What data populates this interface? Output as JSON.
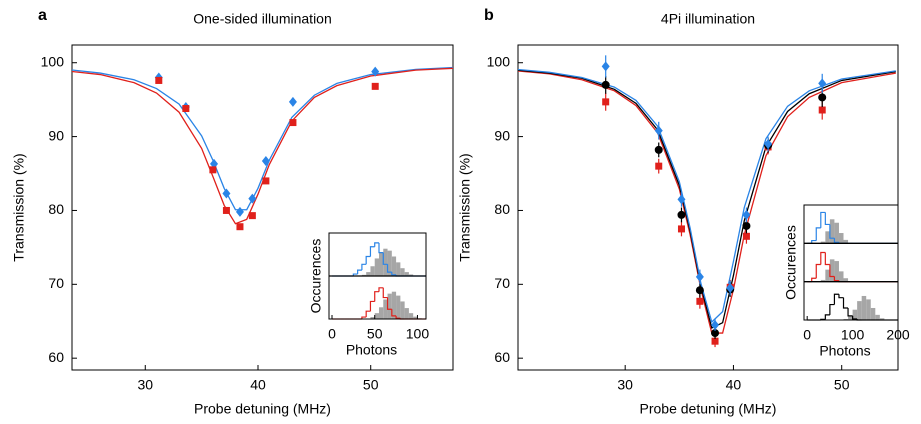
{
  "chart_data": [
    {
      "type": "scatter",
      "label": "a",
      "title": "One-sided illumination",
      "xlabel": "Probe detuning (MHz)",
      "ylabel": "Transmission (%)",
      "xlim": [
        23.5,
        57.3
      ],
      "ylim": [
        58.4,
        102.4
      ],
      "xticks": [
        30,
        40,
        50
      ],
      "yticks": [
        60,
        70,
        80,
        90,
        100
      ],
      "series": [
        {
          "color": "#2a84e6",
          "marker": "diamond",
          "x": [
            31.2,
            33.6,
            36.1,
            37.2,
            38.4,
            39.5,
            40.7,
            43.1,
            50.4
          ],
          "values": [
            98.0,
            94.0,
            86.3,
            82.3,
            79.8,
            81.6,
            86.7,
            94.7,
            98.8
          ]
        },
        {
          "color": "#e0201b",
          "marker": "square",
          "x": [
            31.2,
            33.6,
            36.0,
            37.2,
            38.4,
            39.5,
            40.7,
            43.1,
            50.4
          ],
          "values": [
            97.6,
            93.8,
            85.5,
            80.0,
            77.8,
            79.3,
            84.0,
            91.9,
            96.8
          ]
        }
      ],
      "fits": [
        {
          "color": "#2a84e6",
          "x": [
            23,
            26,
            29,
            31,
            33,
            35,
            36,
            37,
            38,
            39,
            40,
            41,
            43,
            45,
            47,
            50,
            54,
            58
          ],
          "values": [
            99.1,
            98.6,
            97.7,
            96.5,
            94.4,
            90.1,
            86.8,
            83.0,
            80.1,
            80.1,
            83.0,
            86.8,
            92.6,
            95.6,
            97.2,
            98.4,
            99.1,
            99.4
          ]
        },
        {
          "color": "#e0201b",
          "x": [
            23,
            26,
            29,
            31,
            33,
            35,
            36,
            37,
            38,
            39,
            40,
            41,
            43,
            45,
            47,
            50,
            54,
            58
          ],
          "values": [
            98.9,
            98.4,
            97.3,
            95.9,
            93.3,
            88.4,
            84.6,
            80.7,
            78.2,
            78.8,
            82.2,
            86.2,
            92.1,
            95.3,
            96.9,
            98.2,
            99.0,
            99.3
          ]
        }
      ]
    },
    {
      "type": "histogram",
      "xlabel": "Photons",
      "ylabel": "Occurences",
      "xlim": [
        -3.5,
        110
      ],
      "xticks": [
        0,
        50,
        100
      ],
      "ylim": [
        0,
        100
      ],
      "bins": [
        0,
        5,
        10,
        15,
        20,
        25,
        30,
        35,
        40,
        45,
        50,
        55,
        60,
        65,
        70,
        75,
        80,
        85,
        90,
        95,
        100,
        105,
        110
      ],
      "rows": [
        {
          "series": [
            {
              "color": "#a6a6a6",
              "style": "filled",
              "values": [
                0,
                0,
                0,
                0,
                0,
                0,
                0,
                3,
                10,
                25,
                45,
                60,
                70,
                65,
                50,
                35,
                20,
                10,
                4,
                1,
                0,
                0
              ]
            },
            {
              "color": "#2a84e6",
              "style": "step",
              "values": [
                0,
                0,
                0,
                0,
                0,
                5,
                15,
                30,
                50,
                75,
                85,
                60,
                30,
                10,
                3,
                0,
                0,
                0,
                0,
                0,
                0,
                0
              ]
            }
          ]
        },
        {
          "series": [
            {
              "color": "#a6a6a6",
              "style": "filled",
              "values": [
                0,
                0,
                0,
                0,
                0,
                0,
                0,
                0,
                0,
                5,
                15,
                30,
                50,
                65,
                70,
                60,
                45,
                28,
                15,
                6,
                2,
                0
              ]
            },
            {
              "color": "#e0201b",
              "style": "step",
              "values": [
                0,
                0,
                0,
                0,
                0,
                0,
                0,
                5,
                20,
                45,
                70,
                80,
                55,
                25,
                8,
                2,
                0,
                0,
                0,
                0,
                0,
                0
              ]
            }
          ]
        }
      ]
    },
    {
      "type": "scatter",
      "label": "b",
      "title": "4Pi illumination",
      "xlabel": "Probe detuning (MHz)",
      "ylabel": "Transmission (%)",
      "xlim": [
        20.1,
        55.2
      ],
      "ylim": [
        58.4,
        102.4
      ],
      "xticks": [
        30,
        40,
        50
      ],
      "yticks": [
        60,
        70,
        80,
        90,
        100
      ],
      "series": [
        {
          "color": "#e0201b",
          "marker": "square",
          "x": [
            28.2,
            33.1,
            35.2,
            36.9,
            38.3,
            39.7,
            41.2,
            43.2,
            48.2
          ],
          "values": [
            94.7,
            86.0,
            77.5,
            67.7,
            62.3,
            69.6,
            76.5,
            88.6,
            93.6
          ],
          "errors": [
            1.2,
            1.0,
            1.0,
            1.0,
            0.8,
            1.0,
            1.0,
            1.0,
            1.3
          ]
        },
        {
          "color": "#000000",
          "marker": "circle",
          "x": [
            28.2,
            33.1,
            35.2,
            36.9,
            38.3,
            39.7,
            41.2,
            43.2,
            48.2
          ],
          "values": [
            97.0,
            88.2,
            79.4,
            69.2,
            63.4,
            69.3,
            77.9,
            88.8,
            95.3
          ],
          "errors": [
            1.2,
            1.0,
            1.0,
            1.0,
            0.8,
            1.0,
            1.0,
            1.0,
            1.3
          ]
        },
        {
          "color": "#2a84e6",
          "marker": "diamond",
          "x": [
            28.2,
            33.1,
            35.2,
            36.9,
            38.3,
            39.7,
            41.2,
            43.2,
            48.2
          ],
          "values": [
            99.5,
            90.8,
            81.5,
            71.0,
            64.5,
            69.5,
            79.4,
            89.0,
            97.2
          ],
          "errors": [
            1.5,
            1.2,
            1.0,
            1.0,
            0.8,
            1.0,
            1.0,
            1.0,
            1.3
          ]
        }
      ],
      "fits": [
        {
          "color": "#e0201b",
          "x": [
            20,
            23,
            26,
            29,
            31,
            33,
            35,
            36,
            37,
            38,
            39,
            40,
            41,
            43,
            45,
            47,
            50,
            55
          ],
          "values": [
            98.9,
            98.5,
            97.7,
            96.2,
            94.2,
            90.5,
            82.9,
            76.7,
            69.3,
            63.4,
            63.4,
            69.3,
            76.7,
            87.4,
            92.7,
            95.3,
            97.3,
            98.6
          ]
        },
        {
          "color": "#000000",
          "x": [
            20,
            23,
            26,
            29,
            31,
            33,
            35,
            36,
            37,
            38,
            39,
            40,
            41,
            43,
            45,
            47,
            50,
            55
          ],
          "values": [
            99.0,
            98.6,
            97.9,
            96.4,
            94.5,
            90.9,
            83.4,
            77.2,
            69.7,
            64.1,
            64.8,
            71.2,
            78.6,
            88.6,
            93.4,
            95.8,
            97.6,
            98.8
          ]
        },
        {
          "color": "#2a84e6",
          "x": [
            20,
            23,
            26,
            29,
            31,
            33,
            35,
            36,
            37,
            38,
            39,
            40,
            41,
            43,
            45,
            47,
            50,
            55
          ],
          "values": [
            99.1,
            98.7,
            98.0,
            96.7,
            94.9,
            91.4,
            83.9,
            77.6,
            70.1,
            64.9,
            66.3,
            73.1,
            80.4,
            89.7,
            94.1,
            96.2,
            97.8,
            98.9
          ]
        }
      ]
    },
    {
      "type": "histogram",
      "xlabel": "Photons",
      "ylabel": "Occurences",
      "xlim": [
        -7,
        200
      ],
      "xticks": [
        0,
        100,
        200
      ],
      "ylim": [
        0,
        100
      ],
      "bins": [
        0,
        10,
        20,
        30,
        40,
        50,
        60,
        70,
        80,
        90,
        100,
        110,
        120,
        130,
        140,
        150,
        160,
        170,
        180,
        190,
        200
      ],
      "rows": [
        {
          "series": [
            {
              "color": "#a6a6a6",
              "style": "filled",
              "values": [
                0,
                0,
                0,
                5,
                35,
                70,
                60,
                30,
                10,
                2,
                0,
                0,
                0,
                0,
                0,
                0,
                0,
                0,
                0,
                0
              ]
            },
            {
              "color": "#2a84e6",
              "style": "step",
              "values": [
                0,
                8,
                45,
                90,
                55,
                15,
                3,
                0,
                0,
                0,
                0,
                0,
                0,
                0,
                0,
                0,
                0,
                0,
                0,
                0
              ]
            }
          ]
        },
        {
          "series": [
            {
              "color": "#a6a6a6",
              "style": "filled",
              "values": [
                0,
                0,
                0,
                5,
                35,
                65,
                60,
                30,
                10,
                2,
                0,
                0,
                0,
                0,
                0,
                0,
                0,
                0,
                0,
                0
              ]
            },
            {
              "color": "#e0201b",
              "style": "step",
              "values": [
                0,
                10,
                50,
                85,
                50,
                15,
                3,
                0,
                0,
                0,
                0,
                0,
                0,
                0,
                0,
                0,
                0,
                0,
                0,
                0
              ]
            }
          ]
        },
        {
          "series": [
            {
              "color": "#a6a6a6",
              "style": "filled",
              "values": [
                0,
                0,
                0,
                0,
                0,
                0,
                0,
                0,
                3,
                10,
                30,
                55,
                70,
                60,
                35,
                15,
                5,
                1,
                0,
                0
              ]
            },
            {
              "color": "#000000",
              "style": "step",
              "values": [
                0,
                0,
                0,
                2,
                15,
                45,
                75,
                65,
                35,
                12,
                3,
                0,
                0,
                0,
                0,
                0,
                0,
                0,
                0,
                0
              ]
            }
          ]
        }
      ]
    }
  ]
}
